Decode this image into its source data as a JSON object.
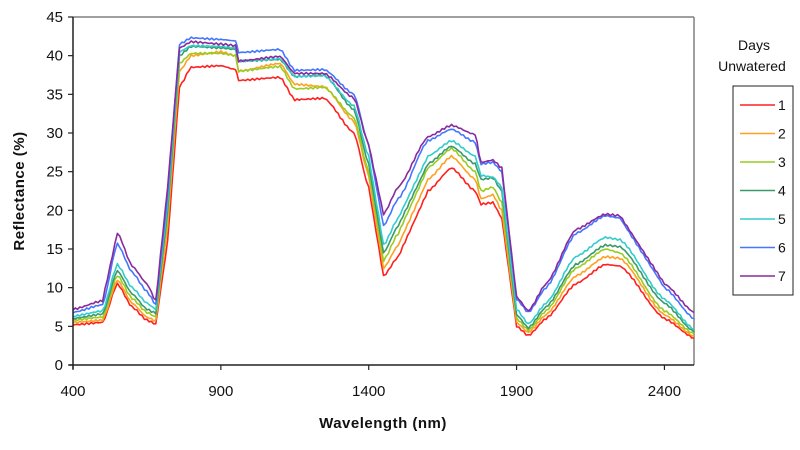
{
  "chart_data": {
    "type": "line",
    "title": "",
    "xlabel": "Wavelength (nm)",
    "ylabel": "Reflectance (%)",
    "xlim": [
      400,
      2500
    ],
    "ylim": [
      0,
      45
    ],
    "xticks": [
      400,
      900,
      1400,
      1900,
      2400
    ],
    "yticks": [
      0,
      5,
      10,
      15,
      20,
      25,
      30,
      35,
      40,
      45
    ],
    "grid": false,
    "legend": {
      "title_line1": "Days",
      "title_line2": "Unwatered",
      "position": "right"
    },
    "x": [
      400,
      500,
      550,
      600,
      650,
      680,
      720,
      760,
      800,
      900,
      950,
      960,
      1100,
      1150,
      1250,
      1350,
      1400,
      1450,
      1500,
      1600,
      1680,
      1760,
      1780,
      1820,
      1850,
      1900,
      1940,
      2000,
      2100,
      2200,
      2250,
      2400,
      2500
    ],
    "series": [
      {
        "name": "1",
        "color": "#ff2020",
        "values": [
          5.2,
          5.5,
          10.5,
          7.5,
          5.8,
          5.3,
          16,
          36,
          38.5,
          38.7,
          38.2,
          36.8,
          37.2,
          34.3,
          34.5,
          30,
          23,
          11.5,
          14,
          22.5,
          25.5,
          22.5,
          20.8,
          21,
          19,
          5,
          3.8,
          6,
          10.5,
          13,
          12.8,
          6,
          3.5
        ]
      },
      {
        "name": "2",
        "color": "#ffa020",
        "values": [
          5.5,
          5.8,
          11.0,
          8.0,
          6.2,
          5.7,
          18,
          38,
          40,
          40.5,
          40.0,
          38.0,
          39.0,
          36.3,
          36.0,
          31.5,
          24.5,
          12.5,
          15.5,
          24,
          27,
          24,
          21.5,
          22,
          20,
          5.5,
          4.2,
          6.5,
          11.5,
          14,
          13.8,
          6.5,
          3.7
        ]
      },
      {
        "name": "3",
        "color": "#99cc22",
        "values": [
          5.8,
          6.2,
          11.6,
          8.6,
          6.8,
          6.2,
          19,
          39,
          40.3,
          40.3,
          40.0,
          38.0,
          38.6,
          35.7,
          35.9,
          32,
          25,
          13.5,
          17,
          25.5,
          28,
          25,
          22.5,
          23,
          21,
          6,
          4.5,
          7,
          12.5,
          15,
          14.5,
          7,
          4
        ]
      },
      {
        "name": "4",
        "color": "#3a9a6a",
        "values": [
          6.0,
          6.6,
          12.2,
          9.2,
          7.2,
          6.7,
          20,
          40,
          41.2,
          41.0,
          40.8,
          39.3,
          39.5,
          37.3,
          37.5,
          33,
          26,
          14.5,
          18,
          26,
          28.3,
          26,
          24,
          24.2,
          22.5,
          6.5,
          4.8,
          7.5,
          13,
          15.5,
          15.3,
          8,
          4.3
        ]
      },
      {
        "name": "5",
        "color": "#33cccc",
        "values": [
          6.3,
          7.0,
          13.0,
          10.0,
          8.0,
          7.2,
          21,
          40.5,
          41.3,
          41.2,
          41.0,
          39.3,
          39.6,
          37.3,
          37.4,
          33.5,
          27,
          15.5,
          19,
          27,
          29,
          27,
          24.5,
          24.3,
          23,
          7.2,
          5.3,
          8,
          14,
          16.5,
          16.2,
          8.5,
          4.6
        ]
      },
      {
        "name": "6",
        "color": "#4477ff",
        "values": [
          6.8,
          7.8,
          15.7,
          12.0,
          9.5,
          7.8,
          22,
          41.5,
          42.3,
          42.1,
          41.9,
          40.4,
          40.8,
          38.1,
          38.2,
          35,
          28.5,
          18,
          21.5,
          29,
          30.5,
          28.8,
          26,
          26.2,
          25,
          8.5,
          6.8,
          10,
          17,
          19.3,
          19.0,
          10,
          6
        ]
      },
      {
        "name": "7",
        "color": "#8a2a9e",
        "values": [
          7.2,
          8.3,
          17.1,
          12.8,
          10.5,
          8.3,
          23,
          41,
          41.8,
          41.5,
          41.3,
          39.3,
          39.9,
          37.7,
          37.7,
          34.5,
          28.5,
          19.5,
          23,
          29.5,
          31,
          29.8,
          26.2,
          26.5,
          25.5,
          8.8,
          7.0,
          10.5,
          17.5,
          19.5,
          19.3,
          10.5,
          6.8
        ]
      }
    ]
  }
}
